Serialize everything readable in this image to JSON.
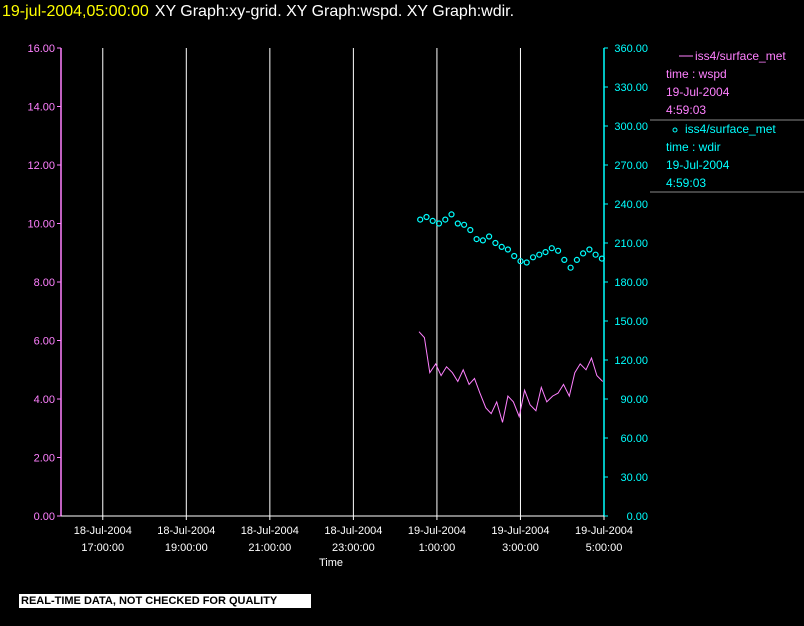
{
  "header": {
    "time": "19-jul-2004,05:00:00",
    "graphs": "XY Graph:xy-grid.  XY Graph:wspd.  XY Graph:wdir."
  },
  "footer": {
    "quality_notice": "REAL-TIME DATA, NOT CHECKED FOR QUALITY"
  },
  "colors": {
    "background": "#000000",
    "wspd": "#ff80ff",
    "wdir": "#00ffff",
    "grid": "#ffffff",
    "header_time": "#ffff00"
  },
  "chart_data": {
    "type": "line",
    "xlabel": "Time",
    "x_ticks": [
      [
        "18-Jul-2004",
        "17:00:00"
      ],
      [
        "18-Jul-2004",
        "19:00:00"
      ],
      [
        "18-Jul-2004",
        "21:00:00"
      ],
      [
        "18-Jul-2004",
        "23:00:00"
      ],
      [
        "19-Jul-2004",
        "1:00:00"
      ],
      [
        "19-Jul-2004",
        "3:00:00"
      ],
      [
        "19-Jul-2004",
        "5:00:00"
      ]
    ],
    "xlim": [
      "2004-07-18 16:00:00",
      "2004-07-19 05:00:00"
    ],
    "y_left": {
      "ylim": [
        0,
        16
      ],
      "ticks": [
        "0.00",
        "2.00",
        "4.00",
        "6.00",
        "8.00",
        "10.00",
        "12.00",
        "14.00",
        "16.00"
      ]
    },
    "y_right": {
      "ylim": [
        0,
        360
      ],
      "ticks": [
        "0.00",
        "30.00",
        "60.00",
        "90.00",
        "120.00",
        "150.00",
        "180.00",
        "210.00",
        "240.00",
        "270.00",
        "300.00",
        "330.00",
        "360.00"
      ]
    },
    "grid": true,
    "legend_placement": "right",
    "series": [
      {
        "name": "iss4/surface_met",
        "legend_lines": [
          "time : wspd",
          "19-Jul-2004",
          "4:59:03"
        ],
        "axis": "left",
        "style": "line",
        "x_hours": [
          0.57,
          0.7,
          0.83,
          0.97,
          1.1,
          1.23,
          1.37,
          1.5,
          1.63,
          1.77,
          1.9,
          2.03,
          2.17,
          2.3,
          2.43,
          2.57,
          2.7,
          2.83,
          2.97,
          3.1,
          3.23,
          3.37,
          3.5,
          3.63,
          3.77,
          3.9,
          4.03,
          4.17,
          4.3,
          4.43,
          4.57,
          4.7,
          4.83,
          4.97
        ],
        "values": [
          6.3,
          6.1,
          4.9,
          5.2,
          4.8,
          5.1,
          4.9,
          4.6,
          5.0,
          4.5,
          4.7,
          4.2,
          3.7,
          3.5,
          3.9,
          3.2,
          4.1,
          3.9,
          3.4,
          4.3,
          3.8,
          3.6,
          4.4,
          3.9,
          4.1,
          4.2,
          4.5,
          4.1,
          4.9,
          5.2,
          5.0,
          5.4,
          4.8,
          4.6
        ]
      },
      {
        "name": "iss4/surface_met",
        "legend_lines": [
          "time : wdir",
          "19-Jul-2004",
          "4:59:03"
        ],
        "axis": "right",
        "style": "markers",
        "x_hours": [
          0.6,
          0.75,
          0.9,
          1.05,
          1.2,
          1.35,
          1.5,
          1.65,
          1.8,
          1.95,
          2.1,
          2.25,
          2.4,
          2.55,
          2.7,
          2.85,
          3.0,
          3.15,
          3.3,
          3.45,
          3.6,
          3.75,
          3.9,
          4.05,
          4.2,
          4.35,
          4.5,
          4.65,
          4.8,
          4.95
        ],
        "values": [
          228,
          230,
          227,
          225,
          228,
          232,
          225,
          224,
          220,
          213,
          212,
          215,
          210,
          207,
          205,
          200,
          196,
          195,
          199,
          201,
          203,
          206,
          204,
          197,
          191,
          197,
          202,
          205,
          201,
          198
        ]
      }
    ]
  }
}
